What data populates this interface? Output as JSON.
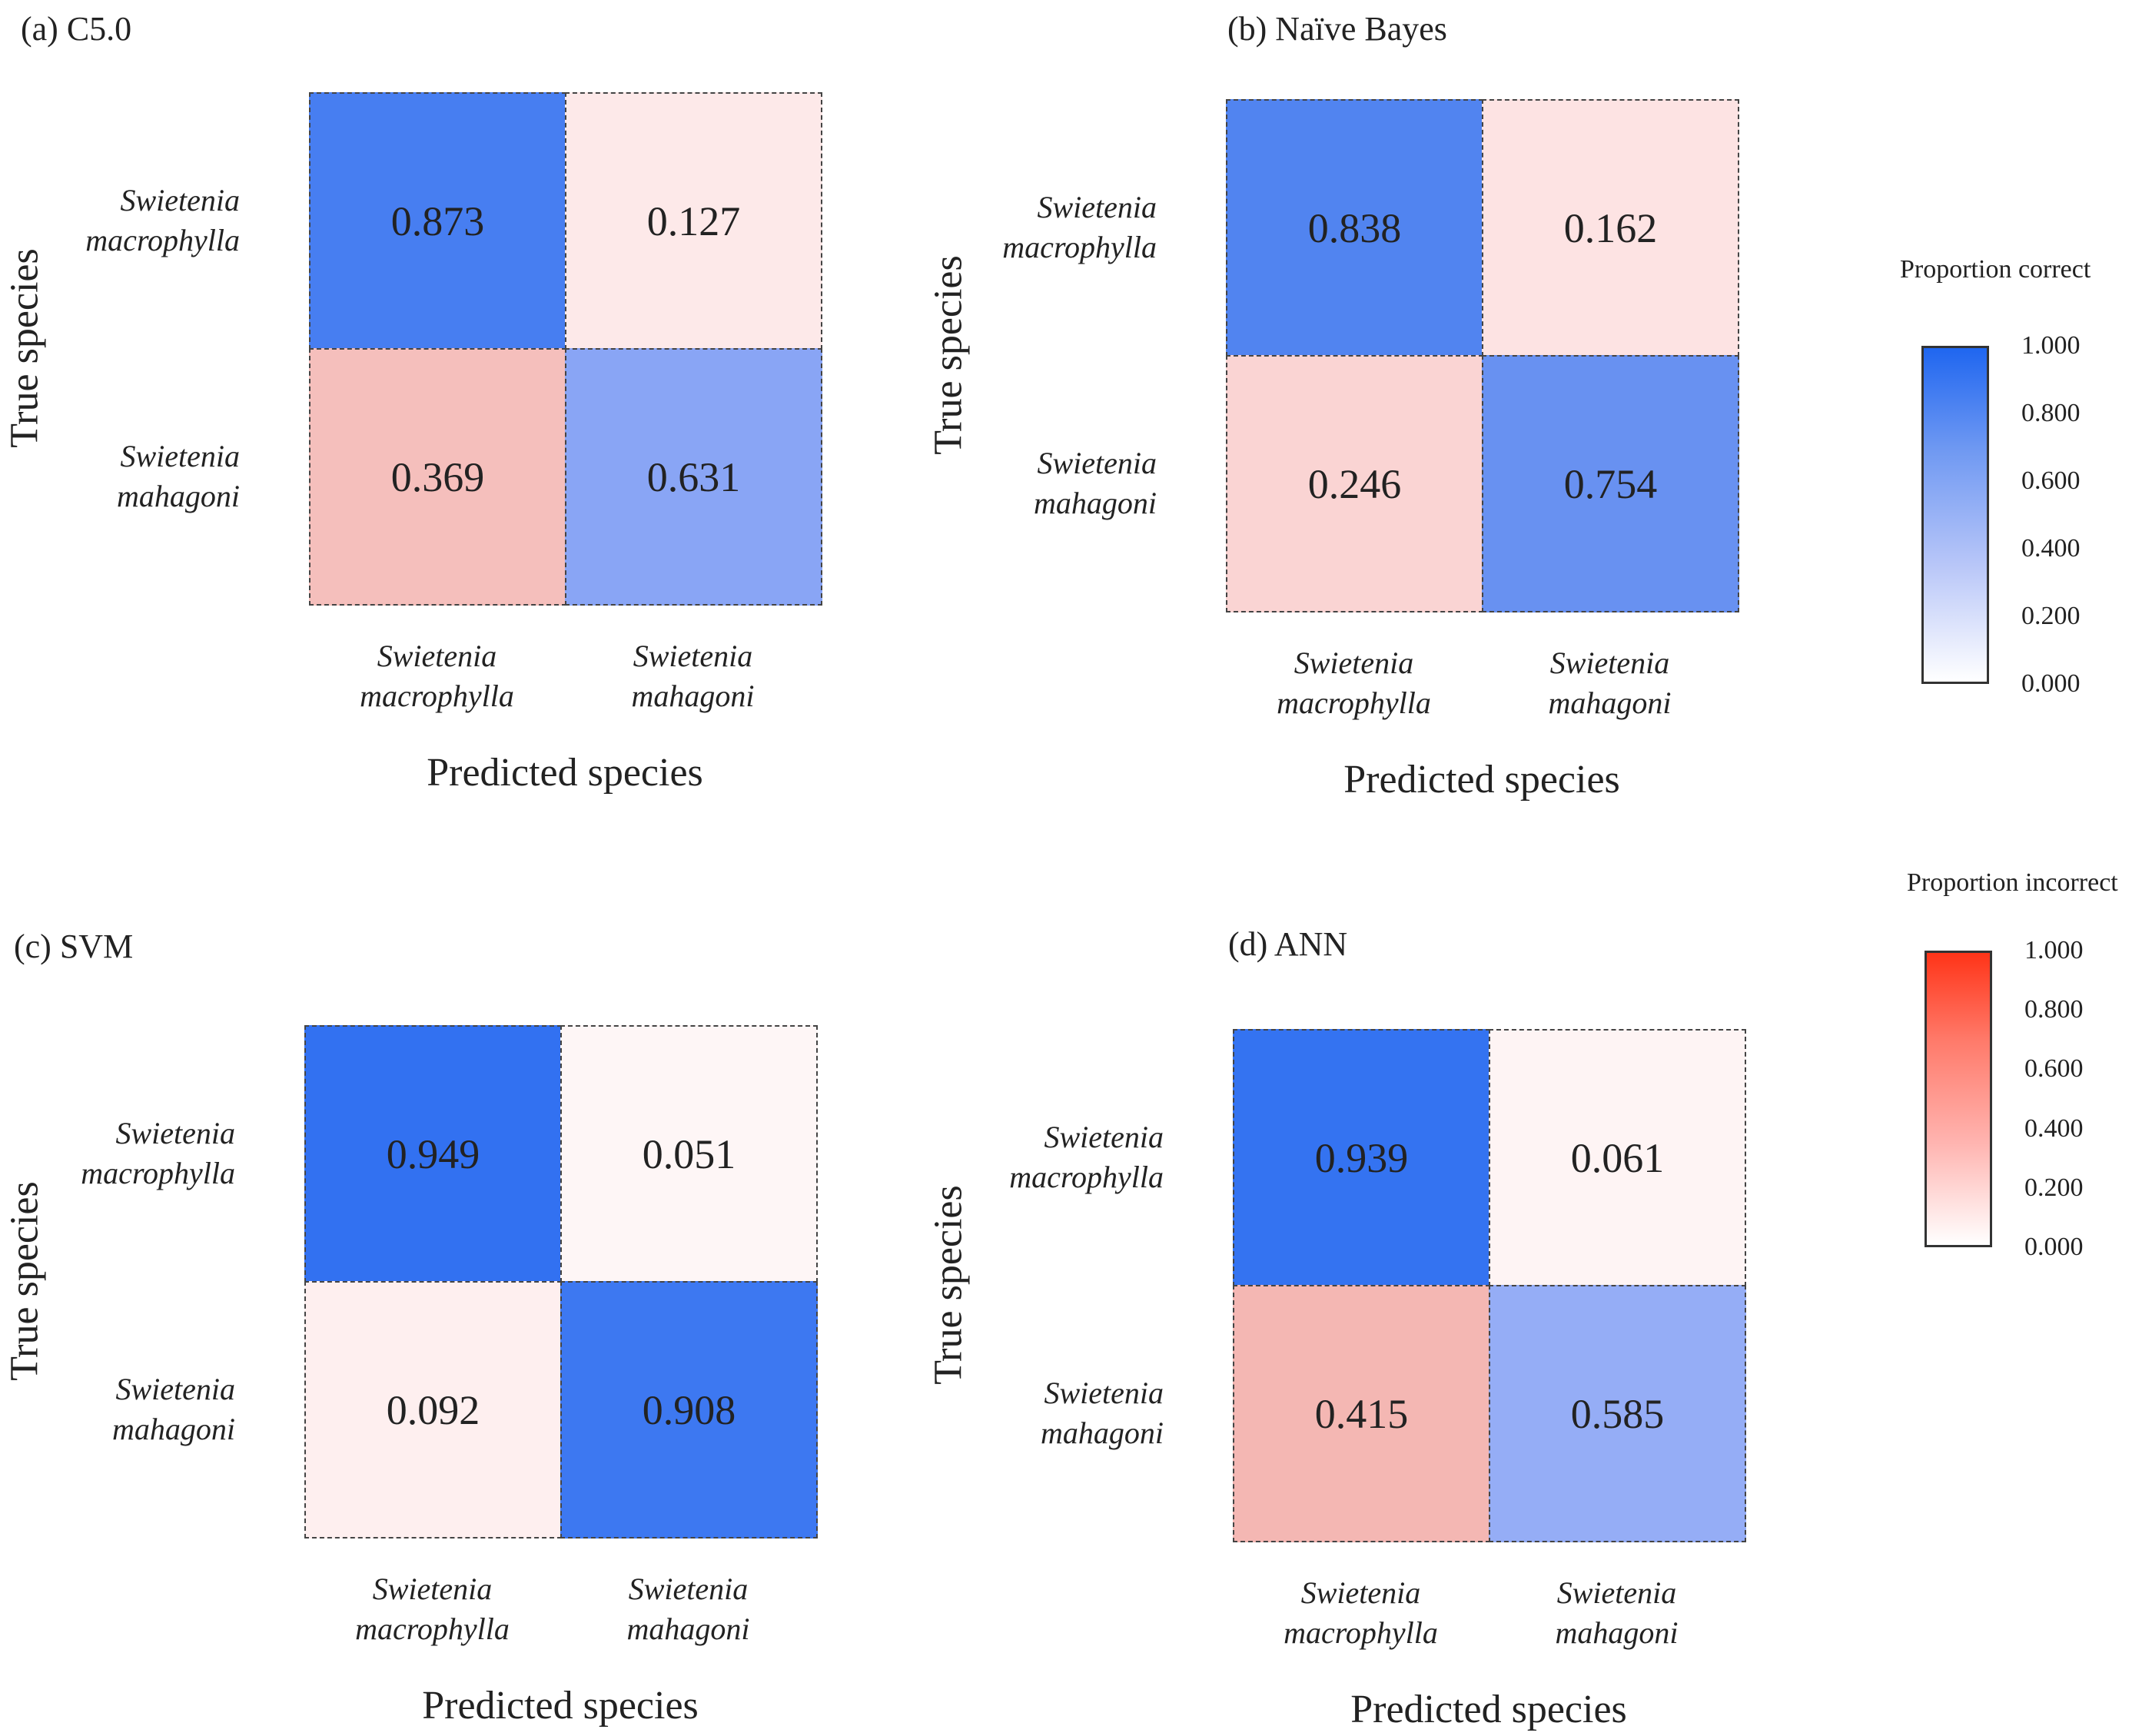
{
  "chart_data": [
    {
      "type": "heatmap",
      "title": "(a) C5.0",
      "xlabel": "Predicted species",
      "ylabel": "True species",
      "row_labels": [
        [
          "Swietenia",
          "macrophylla"
        ],
        [
          "Swietenia",
          "mahagoni"
        ]
      ],
      "col_labels": [
        [
          "Swietenia",
          "macrophylla"
        ],
        [
          "Swietenia",
          "mahagoni"
        ]
      ],
      "values": [
        [
          "0.873",
          "0.127"
        ],
        [
          "0.369",
          "0.631"
        ]
      ]
    },
    {
      "type": "heatmap",
      "title": "(b) Naïve Bayes",
      "xlabel": "Predicted species",
      "ylabel": "True species",
      "row_labels": [
        [
          "Swietenia",
          "macrophylla"
        ],
        [
          "Swietenia",
          "mahagoni"
        ]
      ],
      "col_labels": [
        [
          "Swietenia",
          "macrophylla"
        ],
        [
          "Swietenia",
          "mahagoni"
        ]
      ],
      "values": [
        [
          "0.838",
          "0.162"
        ],
        [
          "0.246",
          "0.754"
        ]
      ]
    },
    {
      "type": "heatmap",
      "title": "(c) SVM",
      "xlabel": "Predicted species",
      "ylabel": "True species",
      "row_labels": [
        [
          "Swietenia",
          "macrophylla"
        ],
        [
          "Swietenia",
          "mahagoni"
        ]
      ],
      "col_labels": [
        [
          "Swietenia",
          "macrophylla"
        ],
        [
          "Swietenia",
          "mahagoni"
        ]
      ],
      "values": [
        [
          "0.949",
          "0.051"
        ],
        [
          "0.092",
          "0.908"
        ]
      ]
    },
    {
      "type": "heatmap",
      "title": "(d) ANN",
      "xlabel": "Predicted species",
      "ylabel": "True species",
      "row_labels": [
        [
          "Swietenia",
          "macrophylla"
        ],
        [
          "Swietenia",
          "mahagoni"
        ]
      ],
      "col_labels": [
        [
          "Swietenia",
          "macrophylla"
        ],
        [
          "Swietenia",
          "mahagoni"
        ]
      ],
      "values": [
        [
          "0.939",
          "0.061"
        ],
        [
          "0.415",
          "0.585"
        ]
      ]
    }
  ],
  "legends": [
    {
      "title": "Proportion correct",
      "ticks": [
        "1.000",
        "0.800",
        "0.600",
        "0.400",
        "0.200",
        "0.000"
      ],
      "color_high": "#1f66f0",
      "color_low": "#ffffff"
    },
    {
      "title": "Proportion incorrect",
      "ticks": [
        "1.000",
        "0.800",
        "0.600",
        "0.400",
        "0.200",
        "0.000"
      ],
      "color_high": "#ff3418",
      "color_low": "#ffffff"
    }
  ]
}
